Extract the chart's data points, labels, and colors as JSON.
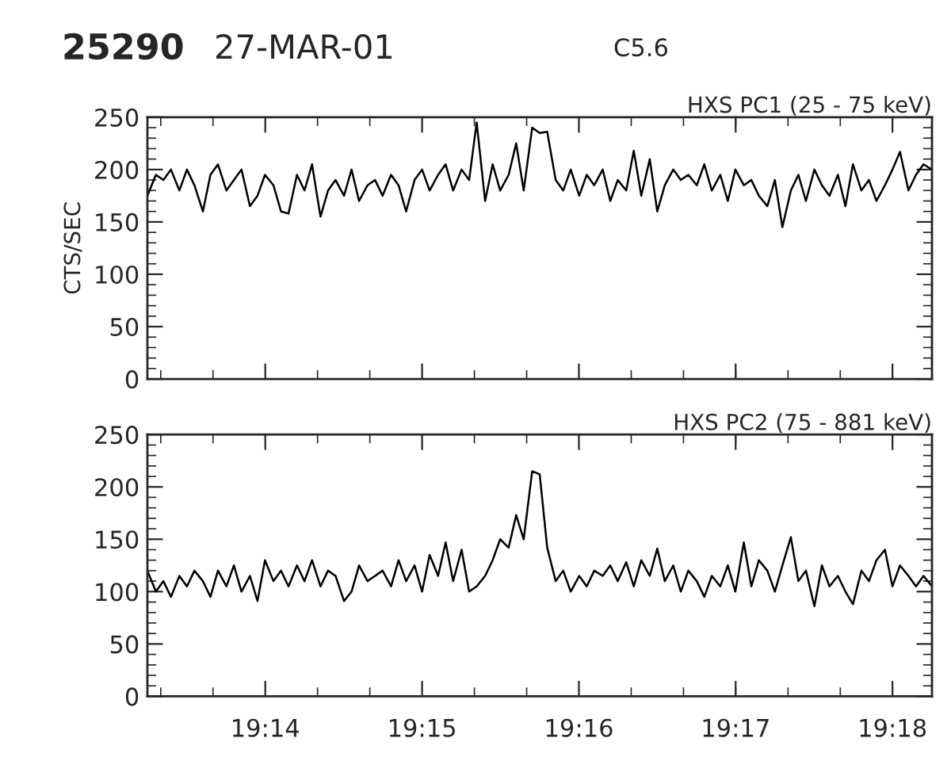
{
  "chart_data": [
    {
      "type": "line",
      "title": "HXS PC1 (25 - 75 keV)",
      "ylabel": "CTS/SEC",
      "annotations": [
        "25290",
        "27-MAR-01",
        "C5.6"
      ],
      "x": [
        19.2208,
        19.2217,
        19.2225,
        19.2233,
        19.2242,
        19.225,
        19.2258,
        19.2267,
        19.2275,
        19.2283,
        19.2292,
        19.23,
        19.2308,
        19.2317,
        19.2325,
        19.2333,
        19.2342,
        19.235,
        19.2358,
        19.2367,
        19.2375,
        19.2383,
        19.2392,
        19.24,
        19.2408,
        19.2417,
        19.2425,
        19.2433,
        19.2442,
        19.245,
        19.2458,
        19.2467,
        19.2475,
        19.2483,
        19.2492,
        19.25,
        19.2508,
        19.2517,
        19.2525,
        19.2533,
        19.2542,
        19.255,
        19.2558,
        19.2567,
        19.2575,
        19.2583,
        19.2592,
        19.26,
        19.2608,
        19.2617,
        19.2625,
        19.2633,
        19.2642,
        19.265,
        19.2658,
        19.2667,
        19.2675,
        19.2683,
        19.2692,
        19.27,
        19.2708,
        19.2717,
        19.2725,
        19.2733,
        19.2742,
        19.275,
        19.2758,
        19.2767,
        19.2775,
        19.2783,
        19.2792,
        19.28,
        19.2808,
        19.2817,
        19.2825,
        19.2833,
        19.2842,
        19.285,
        19.2858,
        19.2867,
        19.2875,
        19.2883,
        19.2892,
        19.29,
        19.2908,
        19.2917,
        19.2925,
        19.2933,
        19.2942,
        19.295,
        19.2958,
        19.2967,
        19.2975,
        19.2983,
        19.2992,
        19.3,
        19.3008,
        19.3017,
        19.3025,
        19.3033,
        19.3042
      ],
      "series": [
        {
          "color": "#000000",
          "values": [
            175,
            195,
            190,
            200,
            180,
            200,
            185,
            160,
            195,
            205,
            180,
            190,
            200,
            165,
            175,
            195,
            185,
            160,
            158,
            195,
            180,
            205,
            155,
            180,
            190,
            175,
            200,
            170,
            185,
            190,
            175,
            195,
            185,
            160,
            190,
            200,
            180,
            195,
            205,
            180,
            200,
            190,
            245,
            170,
            205,
            180,
            195,
            225,
            180,
            240,
            235,
            236,
            190,
            180,
            200,
            175,
            195,
            185,
            200,
            170,
            190,
            180,
            218,
            175,
            210,
            160,
            185,
            200,
            190,
            195,
            185,
            205,
            180,
            195,
            170,
            200,
            185,
            190,
            175,
            165,
            190,
            145,
            180,
            195,
            170,
            200,
            185,
            175,
            195,
            165,
            205,
            180,
            190,
            170,
            185,
            200,
            217,
            180,
            195,
            205,
            200
          ]
        }
      ],
      "xlim": [
        19.2208,
        19.3042
      ],
      "xticks": [
        {
          "value": 19.23333,
          "label": null
        },
        {
          "value": 19.25,
          "label": null
        },
        {
          "value": 19.26667,
          "label": null
        },
        {
          "value": 19.28333,
          "label": null
        },
        {
          "value": 19.3,
          "label": null
        }
      ],
      "ylim": [
        0,
        250
      ],
      "yticks": [
        0,
        50,
        100,
        150,
        200,
        250
      ],
      "tick_labels": "y"
    },
    {
      "type": "line",
      "title": "HXS PC2 (75 - 881 keV)",
      "x": [
        19.2208,
        19.2217,
        19.2225,
        19.2233,
        19.2242,
        19.225,
        19.2258,
        19.2267,
        19.2275,
        19.2283,
        19.2292,
        19.23,
        19.2308,
        19.2317,
        19.2325,
        19.2333,
        19.2342,
        19.235,
        19.2358,
        19.2367,
        19.2375,
        19.2383,
        19.2392,
        19.24,
        19.2408,
        19.2417,
        19.2425,
        19.2433,
        19.2442,
        19.245,
        19.2458,
        19.2467,
        19.2475,
        19.2483,
        19.2492,
        19.25,
        19.2508,
        19.2517,
        19.2525,
        19.2533,
        19.2542,
        19.255,
        19.2558,
        19.2567,
        19.2575,
        19.2583,
        19.2592,
        19.26,
        19.2608,
        19.2617,
        19.2625,
        19.2633,
        19.2642,
        19.265,
        19.2658,
        19.2667,
        19.2675,
        19.2683,
        19.2692,
        19.27,
        19.2708,
        19.2717,
        19.2725,
        19.2733,
        19.2742,
        19.275,
        19.2758,
        19.2767,
        19.2775,
        19.2783,
        19.2792,
        19.28,
        19.2808,
        19.2817,
        19.2825,
        19.2833,
        19.2842,
        19.285,
        19.2858,
        19.2867,
        19.2875,
        19.2883,
        19.2892,
        19.29,
        19.2908,
        19.2917,
        19.2925,
        19.2933,
        19.2942,
        19.295,
        19.2958,
        19.2967,
        19.2975,
        19.2983,
        19.2992,
        19.3,
        19.3008,
        19.3017,
        19.3025,
        19.3033,
        19.3042
      ],
      "series": [
        {
          "color": "#000000",
          "values": [
            120,
            100,
            110,
            95,
            115,
            105,
            120,
            110,
            95,
            120,
            105,
            125,
            100,
            115,
            91,
            130,
            110,
            120,
            105,
            125,
            110,
            130,
            105,
            120,
            115,
            91,
            100,
            125,
            110,
            115,
            120,
            105,
            130,
            110,
            125,
            100,
            135,
            115,
            147,
            110,
            140,
            100,
            105,
            115,
            130,
            150,
            142,
            173,
            150,
            215,
            212,
            142,
            110,
            120,
            100,
            115,
            105,
            120,
            115,
            125,
            110,
            128,
            105,
            130,
            115,
            141,
            110,
            125,
            100,
            120,
            110,
            95,
            115,
            105,
            125,
            100,
            147,
            105,
            130,
            120,
            100,
            125,
            152,
            110,
            120,
            86,
            125,
            105,
            115,
            100,
            88,
            120,
            110,
            130,
            140,
            105,
            125,
            115,
            105,
            115,
            105
          ]
        }
      ],
      "xlim": [
        19.2208,
        19.3042
      ],
      "xticks": [
        {
          "value": 19.23333,
          "label": "19:14"
        },
        {
          "value": 19.25,
          "label": "19:15"
        },
        {
          "value": 19.26667,
          "label": "19:16"
        },
        {
          "value": 19.28333,
          "label": "19:17"
        },
        {
          "value": 19.3,
          "label": "19:18"
        }
      ],
      "ylim": [
        0,
        250
      ],
      "yticks": [
        0,
        50,
        100,
        150,
        200,
        250
      ]
    }
  ]
}
